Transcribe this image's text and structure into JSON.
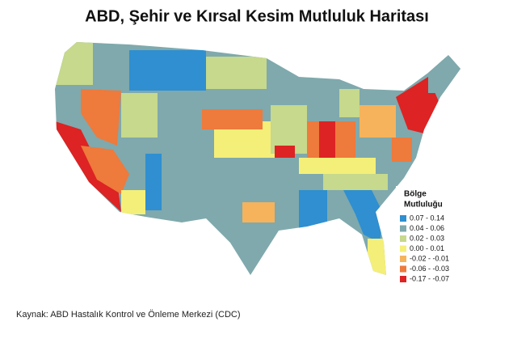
{
  "title": "ABD, Şehir ve Kırsal Kesim Mutluluk Haritası",
  "legend": {
    "title": [
      "Bölge",
      "Mutluluğu"
    ],
    "items": [
      {
        "label": "0.07 - 0.14",
        "color": "#2f8fd0"
      },
      {
        "label": "0.04 - 0.06",
        "color": "#7fa9ad"
      },
      {
        "label": "0.02 - 0.03",
        "color": "#c6d98c"
      },
      {
        "label": "0.00 - 0.01",
        "color": "#f4ef78"
      },
      {
        "label": "-0.02 - -0.01",
        "color": "#f6b35c"
      },
      {
        "label": "-0.06 - -0.03",
        "color": "#ee7a3c"
      },
      {
        "label": "-0.17 - -0.07",
        "color": "#dd2323"
      }
    ]
  },
  "source": "Kaynak: ABD Hastalık Kontrol ve Önleme Merkezi (CDC)"
}
